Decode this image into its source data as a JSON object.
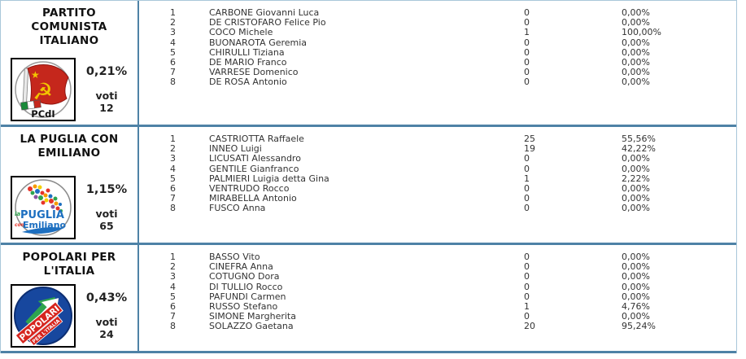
{
  "labels": {
    "voti": "voti"
  },
  "colors": {
    "separator_blue": "#4e82a6",
    "outer_border_blue": "#a9c7da",
    "text": "#333333",
    "pci_red": "#c5271c",
    "pci_yellow": "#f2c400",
    "puglia_blue": "#1d6fc0",
    "popolari_blue": "#17479e",
    "popolari_red": "#d6251e"
  },
  "logos": {
    "pci": {
      "label": "PCdI"
    },
    "puglia": {
      "la": "la",
      "region": "PUGLIA",
      "con": "con",
      "emiliano": "Emiliano"
    },
    "popolari": {
      "line1": "POPOLARI",
      "line2": "PER L'ITALIA"
    }
  },
  "parties": [
    {
      "name": "PARTITO COMUNISTA ITALIANO",
      "name_lines": [
        "PARTITO",
        "COMUNISTA",
        "ITALIANO"
      ],
      "percent": "0,21%",
      "votes": "12",
      "logo": "pci",
      "candidates": [
        {
          "rank": "1",
          "name": "CARBONE Giovanni Luca",
          "votes": "0",
          "percent": "0,00%"
        },
        {
          "rank": "2",
          "name": "DE CRISTOFARO Felice Pio",
          "votes": "0",
          "percent": "0,00%"
        },
        {
          "rank": "3",
          "name": "COCO Michele",
          "votes": "1",
          "percent": "100,00%"
        },
        {
          "rank": "4",
          "name": "BUONAROTA Geremia",
          "votes": "0",
          "percent": "0,00%"
        },
        {
          "rank": "5",
          "name": "CHIRULLI Tiziana",
          "votes": "0",
          "percent": "0,00%"
        },
        {
          "rank": "6",
          "name": "DE MARIO Franco",
          "votes": "0",
          "percent": "0,00%"
        },
        {
          "rank": "7",
          "name": "VARRESE Domenico",
          "votes": "0",
          "percent": "0,00%"
        },
        {
          "rank": "8",
          "name": "DE ROSA Antonio",
          "votes": "0",
          "percent": "0,00%"
        }
      ]
    },
    {
      "name": "LA PUGLIA CON EMILIANO",
      "name_lines": [
        "LA PUGLIA CON",
        "EMILIANO"
      ],
      "percent": "1,15%",
      "votes": "65",
      "logo": "puglia",
      "candidates": [
        {
          "rank": "1",
          "name": "CASTRIOTTA Raffaele",
          "votes": "25",
          "percent": "55,56%"
        },
        {
          "rank": "2",
          "name": "INNEO Luigi",
          "votes": "19",
          "percent": "42,22%"
        },
        {
          "rank": "3",
          "name": "LICUSATI Alessandro",
          "votes": "0",
          "percent": "0,00%"
        },
        {
          "rank": "4",
          "name": "GENTILE Gianfranco",
          "votes": "0",
          "percent": "0,00%"
        },
        {
          "rank": "5",
          "name": "PALMIERI Luigia detta Gina",
          "votes": "1",
          "percent": "2,22%"
        },
        {
          "rank": "6",
          "name": "VENTRUDO Rocco",
          "votes": "0",
          "percent": "0,00%"
        },
        {
          "rank": "7",
          "name": "MIRABELLA Antonio",
          "votes": "0",
          "percent": "0,00%"
        },
        {
          "rank": "8",
          "name": "FUSCO Anna",
          "votes": "0",
          "percent": "0,00%"
        }
      ]
    },
    {
      "name": "POPOLARI PER L'ITALIA",
      "name_lines": [
        "POPOLARI PER",
        "L'ITALIA"
      ],
      "percent": "0,43%",
      "votes": "24",
      "logo": "popolari",
      "candidates": [
        {
          "rank": "1",
          "name": "BASSO Vito",
          "votes": "0",
          "percent": "0,00%"
        },
        {
          "rank": "2",
          "name": "CINEFRA Anna",
          "votes": "0",
          "percent": "0,00%"
        },
        {
          "rank": "3",
          "name": "COTUGNO Dora",
          "votes": "0",
          "percent": "0,00%"
        },
        {
          "rank": "4",
          "name": "DI TULLIO Rocco",
          "votes": "0",
          "percent": "0,00%"
        },
        {
          "rank": "5",
          "name": "PAFUNDI Carmen",
          "votes": "0",
          "percent": "0,00%"
        },
        {
          "rank": "6",
          "name": "RUSSO Stefano",
          "votes": "1",
          "percent": "4,76%"
        },
        {
          "rank": "7",
          "name": "SIMONE Margherita",
          "votes": "0",
          "percent": "0,00%"
        },
        {
          "rank": "8",
          "name": "SOLAZZO Gaetana",
          "votes": "20",
          "percent": "95,24%"
        }
      ]
    }
  ]
}
